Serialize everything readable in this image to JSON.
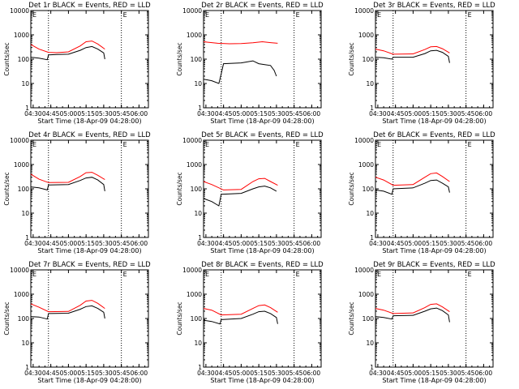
{
  "figure": {
    "xlabel": "Start Time (18-Apr-09 04:28:00)",
    "ylabel": "Counts/sec",
    "x_tick_labels": [
      "04:30",
      "04:45",
      "05:00",
      "05:15",
      "05:30",
      "05:45",
      "06:00"
    ],
    "y_tick_labels": [
      "1",
      "10",
      "100",
      "1000",
      "10000"
    ],
    "corner_marks": [
      "E",
      "E"
    ],
    "colors": {
      "events": "#000000",
      "lld": "#ff0000",
      "axes": "#000000"
    }
  },
  "chart_data": [
    {
      "type": "line",
      "title": "Det 1r BLACK = Events, RED = LLD",
      "xlabel": "Start Time (18-Apr-09 04:28:00)",
      "ylabel": "Counts/sec",
      "xlim": [
        "04:28",
        "06:08"
      ],
      "ylim": [
        1,
        10000
      ],
      "yscale": "log",
      "vlines": [
        "04:43",
        "05:45"
      ],
      "series": [
        {
          "name": "Events",
          "color": "#000000",
          "points": [
            [
              "04:28",
              120
            ],
            [
              "04:35",
              110
            ],
            [
              "04:42",
              95
            ],
            [
              "04:43",
              150
            ],
            [
              "04:50",
              155
            ],
            [
              "05:00",
              160
            ],
            [
              "05:10",
              230
            ],
            [
              "05:15",
              300
            ],
            [
              "05:20",
              330
            ],
            [
              "05:25",
              260
            ],
            [
              "05:30",
              180
            ],
            [
              "05:31",
              100
            ]
          ]
        },
        {
          "name": "LLD",
          "color": "#ff0000",
          "points": [
            [
              "04:28",
              400
            ],
            [
              "04:35",
              260
            ],
            [
              "04:43",
              190
            ],
            [
              "04:50",
              185
            ],
            [
              "05:00",
              200
            ],
            [
              "05:10",
              350
            ],
            [
              "05:15",
              520
            ],
            [
              "05:20",
              560
            ],
            [
              "05:25",
              420
            ],
            [
              "05:31",
              260
            ]
          ]
        }
      ]
    },
    {
      "type": "line",
      "title": "Det 2r BLACK = Events, RED = LLD",
      "xlabel": "Start Time (18-Apr-09 04:28:00)",
      "ylabel": "Counts/sec",
      "xlim": [
        "04:28",
        "06:08"
      ],
      "ylim": [
        1,
        10000
      ],
      "yscale": "log",
      "vlines": [
        "04:43",
        "05:45"
      ],
      "series": [
        {
          "name": "Events",
          "color": "#000000",
          "points": [
            [
              "04:28",
              15
            ],
            [
              "04:35",
              13
            ],
            [
              "04:41",
              10
            ],
            [
              "04:43",
              25
            ],
            [
              "04:45",
              65
            ],
            [
              "05:00",
              70
            ],
            [
              "05:10",
              85
            ],
            [
              "05:15",
              65
            ],
            [
              "05:20",
              60
            ],
            [
              "05:25",
              55
            ],
            [
              "05:28",
              35
            ],
            [
              "05:30",
              20
            ]
          ]
        },
        {
          "name": "LLD",
          "color": "#ff0000",
          "points": [
            [
              "04:28",
              520
            ],
            [
              "04:40",
              450
            ],
            [
              "04:50",
              430
            ],
            [
              "05:00",
              440
            ],
            [
              "05:10",
              470
            ],
            [
              "05:18",
              520
            ],
            [
              "05:25",
              480
            ],
            [
              "05:31",
              450
            ]
          ]
        }
      ]
    },
    {
      "type": "line",
      "title": "Det 3r BLACK = Events, RED = LLD",
      "xlabel": "Start Time (18-Apr-09 04:28:00)",
      "ylabel": "Counts/sec",
      "xlim": [
        "04:28",
        "06:08"
      ],
      "ylim": [
        1,
        10000
      ],
      "yscale": "log",
      "vlines": [
        "04:43",
        "05:45"
      ],
      "series": [
        {
          "name": "Events",
          "color": "#000000",
          "points": [
            [
              "04:28",
              120
            ],
            [
              "04:35",
              115
            ],
            [
              "04:42",
              100
            ],
            [
              "04:43",
              120
            ],
            [
              "05:00",
              120
            ],
            [
              "05:10",
              170
            ],
            [
              "05:15",
              220
            ],
            [
              "05:20",
              230
            ],
            [
              "05:25",
              190
            ],
            [
              "05:30",
              130
            ],
            [
              "05:31",
              70
            ]
          ]
        },
        {
          "name": "LLD",
          "color": "#ff0000",
          "points": [
            [
              "04:28",
              260
            ],
            [
              "04:35",
              220
            ],
            [
              "04:43",
              160
            ],
            [
              "05:00",
              165
            ],
            [
              "05:10",
              250
            ],
            [
              "05:15",
              320
            ],
            [
              "05:20",
              330
            ],
            [
              "05:25",
              270
            ],
            [
              "05:31",
              180
            ]
          ]
        }
      ]
    },
    {
      "type": "line",
      "title": "Det 4r BLACK = Events, RED = LLD",
      "xlabel": "Start Time (18-Apr-09 04:28:00)",
      "ylabel": "Counts/sec",
      "xlim": [
        "04:28",
        "06:08"
      ],
      "ylim": [
        1,
        10000
      ],
      "yscale": "log",
      "vlines": [
        "04:43",
        "05:45"
      ],
      "series": [
        {
          "name": "Events",
          "color": "#000000",
          "points": [
            [
              "04:28",
              120
            ],
            [
              "04:35",
              110
            ],
            [
              "04:42",
              90
            ],
            [
              "04:43",
              145
            ],
            [
              "05:00",
              150
            ],
            [
              "05:10",
              220
            ],
            [
              "05:15",
              280
            ],
            [
              "05:20",
              300
            ],
            [
              "05:25",
              230
            ],
            [
              "05:30",
              150
            ],
            [
              "05:31",
              80
            ]
          ]
        },
        {
          "name": "LLD",
          "color": "#ff0000",
          "points": [
            [
              "04:28",
              400
            ],
            [
              "04:35",
              250
            ],
            [
              "04:43",
              180
            ],
            [
              "05:00",
              185
            ],
            [
              "05:10",
              320
            ],
            [
              "05:15",
              460
            ],
            [
              "05:20",
              480
            ],
            [
              "05:25",
              360
            ],
            [
              "05:31",
              240
            ]
          ]
        }
      ]
    },
    {
      "type": "line",
      "title": "Det 5r BLACK = Events, RED = LLD",
      "xlabel": "Start Time (18-Apr-09 04:28:00)",
      "ylabel": "Counts/sec",
      "xlim": [
        "04:28",
        "06:08"
      ],
      "ylim": [
        1,
        10000
      ],
      "yscale": "log",
      "vlines": [
        "04:43",
        "05:45"
      ],
      "series": [
        {
          "name": "Events",
          "color": "#000000",
          "points": [
            [
              "04:28",
              40
            ],
            [
              "04:35",
              30
            ],
            [
              "04:41",
              20
            ],
            [
              "04:43",
              60
            ],
            [
              "05:00",
              65
            ],
            [
              "05:10",
              100
            ],
            [
              "05:15",
              120
            ],
            [
              "05:20",
              130
            ],
            [
              "05:25",
              110
            ],
            [
              "05:30",
              80
            ]
          ]
        },
        {
          "name": "LLD",
          "color": "#ff0000",
          "points": [
            [
              "04:28",
              200
            ],
            [
              "04:35",
              150
            ],
            [
              "04:45",
              90
            ],
            [
              "05:00",
              95
            ],
            [
              "05:10",
              200
            ],
            [
              "05:15",
              260
            ],
            [
              "05:20",
              270
            ],
            [
              "05:25",
              200
            ],
            [
              "05:31",
              140
            ]
          ]
        }
      ]
    },
    {
      "type": "line",
      "title": "Det 6r BLACK = Events, RED = LLD",
      "xlabel": "Start Time (18-Apr-09 04:28:00)",
      "ylabel": "Counts/sec",
      "xlim": [
        "04:28",
        "06:08"
      ],
      "ylim": [
        1,
        10000
      ],
      "yscale": "log",
      "vlines": [
        "04:43",
        "05:45"
      ],
      "series": [
        {
          "name": "Events",
          "color": "#000000",
          "points": [
            [
              "04:28",
              90
            ],
            [
              "04:35",
              80
            ],
            [
              "04:42",
              60
            ],
            [
              "04:43",
              100
            ],
            [
              "05:00",
              110
            ],
            [
              "05:10",
              170
            ],
            [
              "05:15",
              220
            ],
            [
              "05:20",
              230
            ],
            [
              "05:25",
              170
            ],
            [
              "05:30",
              120
            ],
            [
              "05:31",
              70
            ]
          ]
        },
        {
          "name": "LLD",
          "color": "#ff0000",
          "points": [
            [
              "04:28",
              300
            ],
            [
              "04:35",
              230
            ],
            [
              "04:43",
              140
            ],
            [
              "05:00",
              150
            ],
            [
              "05:10",
              300
            ],
            [
              "05:15",
              420
            ],
            [
              "05:20",
              450
            ],
            [
              "05:25",
              320
            ],
            [
              "05:31",
              200
            ]
          ]
        }
      ]
    },
    {
      "type": "line",
      "title": "Det 7r BLACK = Events, RED = LLD",
      "xlabel": "Start Time (18-Apr-09 04:28:00)",
      "ylabel": "Counts/sec",
      "xlim": [
        "04:28",
        "06:08"
      ],
      "ylim": [
        1,
        10000
      ],
      "yscale": "log",
      "vlines": [
        "04:43",
        "05:45"
      ],
      "series": [
        {
          "name": "Events",
          "color": "#000000",
          "points": [
            [
              "04:28",
              120
            ],
            [
              "04:35",
              115
            ],
            [
              "04:42",
              95
            ],
            [
              "04:43",
              160
            ],
            [
              "05:00",
              165
            ],
            [
              "05:10",
              240
            ],
            [
              "05:15",
              310
            ],
            [
              "05:20",
              330
            ],
            [
              "05:25",
              260
            ],
            [
              "05:30",
              180
            ],
            [
              "05:31",
              100
            ]
          ]
        },
        {
          "name": "LLD",
          "color": "#ff0000",
          "points": [
            [
              "04:28",
              400
            ],
            [
              "04:35",
              290
            ],
            [
              "04:43",
              190
            ],
            [
              "05:00",
              195
            ],
            [
              "05:10",
              350
            ],
            [
              "05:15",
              520
            ],
            [
              "05:20",
              560
            ],
            [
              "05:25",
              420
            ],
            [
              "05:31",
              260
            ]
          ]
        }
      ]
    },
    {
      "type": "line",
      "title": "Det 8r BLACK = Events, RED = LLD",
      "xlabel": "Start Time (18-Apr-09 04:28:00)",
      "ylabel": "Counts/sec",
      "xlim": [
        "04:28",
        "06:08"
      ],
      "ylim": [
        1,
        10000
      ],
      "yscale": "log",
      "vlines": [
        "04:43",
        "05:45"
      ],
      "series": [
        {
          "name": "Events",
          "color": "#000000",
          "points": [
            [
              "04:28",
              85
            ],
            [
              "04:35",
              75
            ],
            [
              "04:42",
              60
            ],
            [
              "04:43",
              90
            ],
            [
              "05:00",
              100
            ],
            [
              "05:10",
              150
            ],
            [
              "05:15",
              190
            ],
            [
              "05:20",
              200
            ],
            [
              "05:25",
              160
            ],
            [
              "05:30",
              110
            ],
            [
              "05:31",
              60
            ]
          ]
        },
        {
          "name": "LLD",
          "color": "#ff0000",
          "points": [
            [
              "04:28",
              260
            ],
            [
              "04:35",
              220
            ],
            [
              "04:43",
              140
            ],
            [
              "05:00",
              150
            ],
            [
              "05:10",
              260
            ],
            [
              "05:15",
              340
            ],
            [
              "05:20",
              360
            ],
            [
              "05:25",
              280
            ],
            [
              "05:31",
              180
            ]
          ]
        }
      ]
    },
    {
      "type": "line",
      "title": "Det 9r BLACK = Events, RED = LLD",
      "xlabel": "Start Time (18-Apr-09 04:28:00)",
      "ylabel": "Counts/sec",
      "xlim": [
        "04:28",
        "06:08"
      ],
      "ylim": [
        1,
        10000
      ],
      "yscale": "log",
      "vlines": [
        "04:43",
        "05:45"
      ],
      "series": [
        {
          "name": "Events",
          "color": "#000000",
          "points": [
            [
              "04:28",
              120
            ],
            [
              "04:35",
              110
            ],
            [
              "04:42",
              95
            ],
            [
              "04:43",
              130
            ],
            [
              "05:00",
              135
            ],
            [
              "05:10",
              200
            ],
            [
              "05:15",
              250
            ],
            [
              "05:20",
              270
            ],
            [
              "05:25",
              210
            ],
            [
              "05:30",
              140
            ],
            [
              "05:31",
              70
            ]
          ]
        },
        {
          "name": "LLD",
          "color": "#ff0000",
          "points": [
            [
              "04:28",
              260
            ],
            [
              "04:35",
              220
            ],
            [
              "04:43",
              160
            ],
            [
              "05:00",
              170
            ],
            [
              "05:10",
              280
            ],
            [
              "05:15",
              380
            ],
            [
              "05:20",
              400
            ],
            [
              "05:25",
              300
            ],
            [
              "05:31",
              190
            ]
          ]
        }
      ]
    }
  ]
}
